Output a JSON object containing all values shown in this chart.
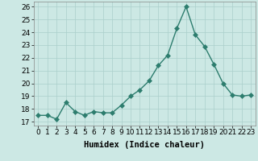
{
  "x": [
    0,
    1,
    2,
    3,
    4,
    5,
    6,
    7,
    8,
    9,
    10,
    11,
    12,
    13,
    14,
    15,
    16,
    17,
    18,
    19,
    20,
    21,
    22,
    23
  ],
  "y": [
    17.5,
    17.5,
    17.2,
    18.5,
    17.8,
    17.5,
    17.8,
    17.7,
    17.7,
    18.3,
    19.0,
    19.5,
    20.2,
    21.4,
    22.2,
    24.3,
    26.0,
    23.8,
    22.9,
    21.5,
    20.0,
    19.1,
    19.0,
    19.1
  ],
  "line_color": "#2d7d6e",
  "marker_color": "#2d7d6e",
  "bg_color": "#cce8e4",
  "grid_color": "#aacfcb",
  "xlabel": "Humidex (Indice chaleur)",
  "ylim": [
    16.7,
    26.4
  ],
  "xlim": [
    -0.5,
    23.5
  ],
  "yticks": [
    17,
    18,
    19,
    20,
    21,
    22,
    23,
    24,
    25,
    26
  ],
  "xtick_labels": [
    "0",
    "1",
    "2",
    "3",
    "4",
    "5",
    "6",
    "7",
    "8",
    "9",
    "10",
    "11",
    "12",
    "13",
    "14",
    "15",
    "16",
    "17",
    "18",
    "19",
    "20",
    "21",
    "22",
    "23"
  ],
  "xlabel_fontsize": 7.5,
  "tick_fontsize": 6.5,
  "marker_size": 3,
  "linewidth": 1.0
}
